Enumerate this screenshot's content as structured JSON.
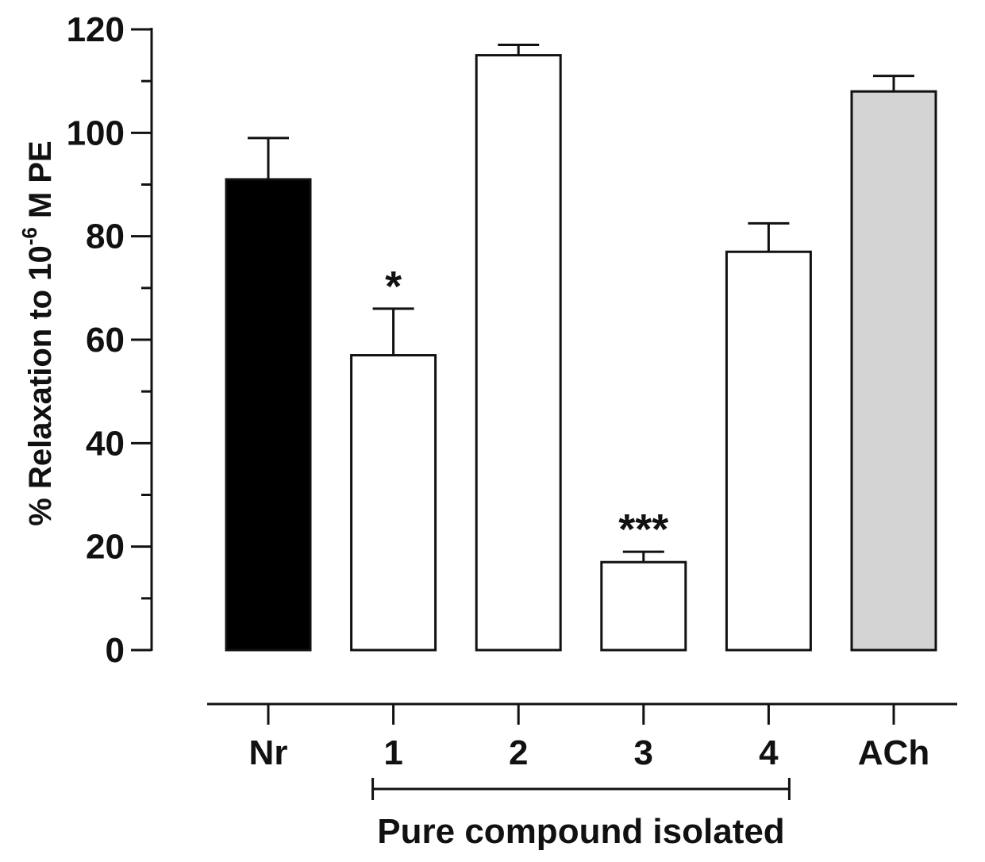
{
  "chart_data": {
    "type": "bar",
    "title": "",
    "ylabel": {
      "prefix": "% Relaxation to 10",
      "superscript": "-6",
      "suffix": " M PE"
    },
    "xlabel": "",
    "ylim": [
      0,
      120
    ],
    "yticks": [
      {
        "value": 0,
        "label": "0"
      },
      {
        "value": 20,
        "label": "20"
      },
      {
        "value": 40,
        "label": "40"
      },
      {
        "value": 60,
        "label": "60"
      },
      {
        "value": 80,
        "label": "80"
      },
      {
        "value": 100,
        "label": "100"
      },
      {
        "value": 120,
        "label": "120"
      }
    ],
    "minor_tick_step": 10,
    "grid": false,
    "categories": [
      "Nr",
      "1",
      "2",
      "3",
      "4",
      "ACh"
    ],
    "values": [
      91,
      57,
      115,
      17,
      77,
      108
    ],
    "errors": [
      8,
      9,
      2,
      2,
      5.5,
      3
    ],
    "significance": [
      "",
      "*",
      "",
      "***",
      "",
      ""
    ],
    "bar_colors": [
      "#000000",
      "#ffffff",
      "#ffffff",
      "#ffffff",
      "#ffffff",
      "#d4d4d4"
    ],
    "group_annotation": {
      "label": "Pure compound isolated",
      "spans_categories": [
        "1",
        "4"
      ]
    }
  }
}
